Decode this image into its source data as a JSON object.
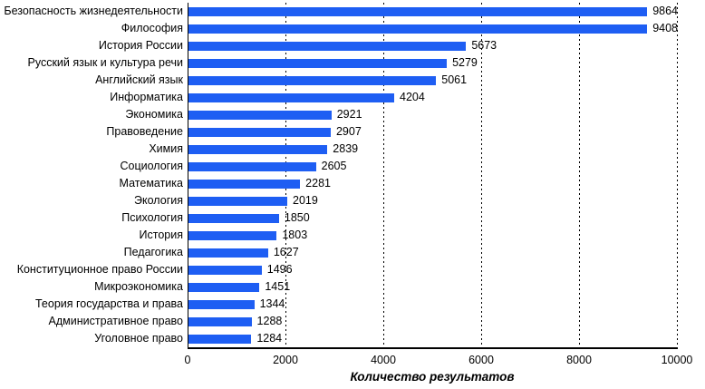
{
  "chart_data": {
    "type": "bar",
    "orientation": "horizontal",
    "title": "",
    "xlabel": "Количество результатов",
    "ylabel": "",
    "categories": [
      "Безопасность жизнедеятельности",
      "Философия",
      "История России",
      "Русский язык и культура речи",
      "Английский язык",
      "Информатика",
      "Экономика",
      "Правоведение",
      "Химия",
      "Социология",
      "Математика",
      "Экология",
      "Психология",
      "История",
      "Педагогика",
      "Конституционное право России",
      "Микроэкономика",
      "Теория государства и права",
      "Административное право",
      "Уголовное право"
    ],
    "values": [
      9864,
      9408,
      5673,
      5279,
      5061,
      4204,
      2921,
      2907,
      2839,
      2605,
      2281,
      2019,
      1850,
      1803,
      1627,
      1496,
      1451,
      1344,
      1288,
      1284
    ],
    "x_ticks": [
      0,
      2000,
      4000,
      6000,
      8000,
      10000
    ],
    "xlim": [
      0,
      10000
    ],
    "bar_color": "#1e5ef3",
    "axis_color": "#000000",
    "grid": "dashed-vertical",
    "legend_position": "none",
    "value_labels_shown": true
  }
}
